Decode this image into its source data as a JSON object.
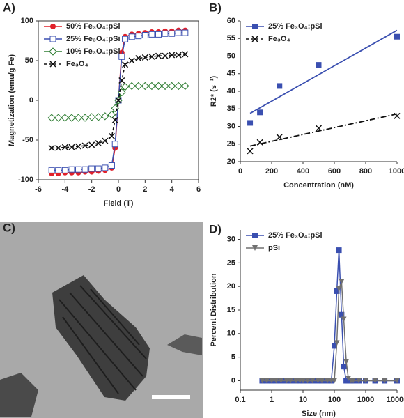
{
  "panel_c": {
    "label": "C)"
  },
  "chart_data": [
    {
      "type": "line",
      "label": "A)",
      "xlabel": "Field (T)",
      "ylabel": "Magnetization (emu/g Fe)",
      "x": [
        -5,
        -4.5,
        -4,
        -3.5,
        -3,
        -2.5,
        -2,
        -1.5,
        -1,
        -0.5,
        -0.25,
        0,
        0.25,
        0.5,
        1,
        1.5,
        2,
        2.5,
        3,
        3.5,
        4,
        4.5,
        5
      ],
      "xlim": [
        -6,
        6
      ],
      "xticks": [
        -6,
        -4,
        -2,
        0,
        2,
        4,
        6
      ],
      "ylim": [
        -100,
        100
      ],
      "yticks": [
        -100,
        -50,
        0,
        50,
        100
      ],
      "legend": "upper left",
      "series": [
        {
          "name": "50% Fe₃O₄:pSi",
          "color": "#e0202a",
          "marker": "circle",
          "dash": false,
          "values": [
            -92,
            -92,
            -91,
            -91,
            -91,
            -90,
            -90,
            -89,
            -88,
            -85,
            -60,
            0,
            60,
            80,
            83,
            84,
            85,
            86,
            86,
            87,
            87,
            88,
            88
          ]
        },
        {
          "name": "25% Fe₃O₄:pSi",
          "color": "#3a4fb0",
          "marker": "square-open",
          "dash": false,
          "values": [
            -88,
            -88,
            -88,
            -87,
            -87,
            -87,
            -86,
            -86,
            -85,
            -82,
            -55,
            0,
            55,
            77,
            80,
            81,
            82,
            83,
            83,
            84,
            84,
            85,
            85
          ]
        },
        {
          "name": "10% Fe₃O₄:pSi",
          "color": "#2e7d32",
          "marker": "diamond-open",
          "dash": false,
          "values": [
            -22,
            -22,
            -22,
            -22,
            -22,
            -22,
            -21,
            -21,
            -20,
            -18,
            -10,
            0,
            10,
            17,
            18,
            18,
            18,
            18,
            18,
            18,
            18,
            18,
            18
          ]
        },
        {
          "name": "Fe₃O₄",
          "color": "#111111",
          "marker": "x",
          "dash": true,
          "values": [
            -60,
            -60,
            -59,
            -59,
            -58,
            -57,
            -56,
            -54,
            -51,
            -45,
            -25,
            0,
            25,
            45,
            50,
            53,
            54,
            55,
            56,
            56,
            57,
            57,
            58
          ]
        }
      ]
    },
    {
      "type": "scatter",
      "label": "B)",
      "xlabel": "Concentration (nM)",
      "ylabel": "R2* (s⁻¹)",
      "x": [
        62.5,
        125,
        250,
        500,
        1000
      ],
      "xlim": [
        0,
        1000
      ],
      "xticks": [
        0,
        200,
        400,
        600,
        800,
        1000
      ],
      "ylim": [
        20,
        60
      ],
      "yticks": [
        20,
        25,
        30,
        35,
        40,
        45,
        50,
        55,
        60
      ],
      "legend": "upper left",
      "trendline": true,
      "series": [
        {
          "name": "25% Fe₃O₄:pSi",
          "color": "#3a4fb0",
          "marker": "square",
          "dash": false,
          "values": [
            31,
            34,
            41.5,
            47.5,
            55.5
          ]
        },
        {
          "name": "Fe₃O₄",
          "color": "#111111",
          "marker": "x",
          "dash": true,
          "values": [
            23,
            25.5,
            27,
            29.5,
            33
          ]
        }
      ]
    },
    {
      "type": "line",
      "label": "D)",
      "xlabel": "Size (nm)",
      "ylabel": "Percent Distribution",
      "xscale": "log",
      "x": [
        0.5,
        0.7,
        1,
        1.4,
        2,
        3,
        4,
        6,
        8,
        10,
        14,
        20,
        30,
        40,
        60,
        80,
        100,
        120,
        140,
        170,
        200,
        240,
        280,
        340,
        400,
        600,
        1000,
        2000,
        4000,
        10000
      ],
      "xlim": [
        0.1,
        10000
      ],
      "xticks": [
        0.1,
        1,
        10,
        100,
        1000,
        10000
      ],
      "ylim": [
        -2,
        32
      ],
      "yticks": [
        0,
        5,
        10,
        15,
        20,
        25,
        30
      ],
      "legend": "upper left",
      "series": [
        {
          "name": "25% Fe₃O₄:pSi",
          "color": "#3a4fb0",
          "marker": "square",
          "dash": false,
          "values": [
            0,
            0,
            0,
            0,
            0,
            0,
            0,
            0,
            0,
            0,
            0,
            0,
            0,
            0,
            0,
            0,
            7.4,
            19,
            27.7,
            14,
            3,
            0,
            0,
            0,
            0,
            0,
            0,
            0,
            0,
            0
          ]
        },
        {
          "name": "pSi",
          "color": "#707070",
          "marker": "triangle",
          "dash": false,
          "values": [
            0,
            0,
            0,
            0,
            0,
            0,
            0,
            0,
            0,
            0,
            0,
            0,
            0,
            0,
            0,
            0,
            0,
            8,
            19.5,
            21,
            13,
            4,
            0.5,
            0,
            0,
            0,
            0,
            0,
            0,
            0
          ]
        }
      ]
    }
  ]
}
